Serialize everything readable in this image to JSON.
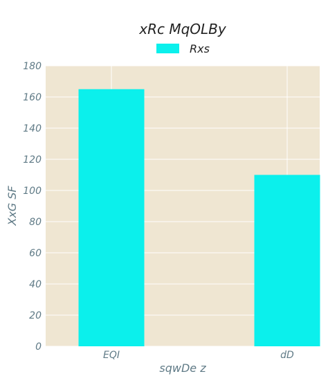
{
  "chart_data": {
    "type": "bar",
    "title": "xRc MqOLBy",
    "xlabel": "sqwDe z",
    "ylabel": "XxG SF",
    "categories": [
      "EQI",
      "dD"
    ],
    "series": [
      {
        "name": "Rxs",
        "values": [
          165,
          110
        ]
      }
    ],
    "ylim": [
      0,
      180
    ],
    "yticks": [
      0,
      20,
      40,
      60,
      80,
      100,
      120,
      140,
      160,
      180
    ],
    "grid": true,
    "legend_position": "top-center",
    "colors": {
      "bar": "#0bf0ec",
      "plot_background": "#efe6d2",
      "grid": "#ffffff",
      "text": "#222222",
      "tick_text": "#5f7a86"
    }
  }
}
